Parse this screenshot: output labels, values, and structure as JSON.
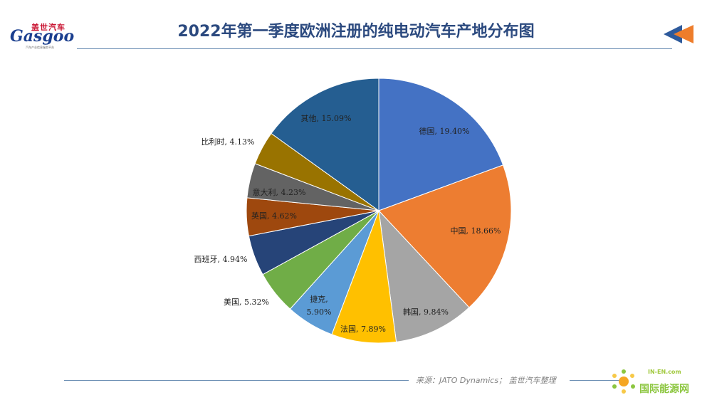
{
  "logo": {
    "top_text": "盖世汽车",
    "main_text": "Gasgoo",
    "sub_text": "汽车产业信息服务平台",
    "brand_color": "#1b3f8f",
    "accent_color": "#c8102e"
  },
  "title": "2022年第一季度欧洲注册的纯电动汽车产地分布图",
  "source": "来源：JATO Dynamics；  盖世汽车整理",
  "watermark": {
    "en": "IN-EN.com",
    "cn": "国际能源网"
  },
  "decor_icon": "double-arrow-left-icon",
  "chart_data": {
    "type": "pie",
    "title": "2022年第一季度欧洲注册的纯电动汽车产地分布图",
    "start_angle_deg": 0,
    "direction": "clockwise",
    "slices": [
      {
        "label": "德国",
        "value": 19.4,
        "display": "19.40%",
        "color": "#4472c4"
      },
      {
        "label": "中国",
        "value": 18.66,
        "display": "18.66%",
        "color": "#ed7d31"
      },
      {
        "label": "韩国",
        "value": 9.84,
        "display": "9.84%",
        "color": "#a5a5a5"
      },
      {
        "label": "法国",
        "value": 7.89,
        "display": "7.89%",
        "color": "#ffc000"
      },
      {
        "label": "捷克",
        "value": 5.9,
        "display": "5.90%",
        "color": "#5b9bd5"
      },
      {
        "label": "美国",
        "value": 5.32,
        "display": "5.32%",
        "color": "#70ad47"
      },
      {
        "label": "西班牙",
        "value": 4.94,
        "display": "4.94%",
        "color": "#264478"
      },
      {
        "label": "英国",
        "value": 4.62,
        "display": "4.62%",
        "color": "#9e480e"
      },
      {
        "label": "意大利",
        "value": 4.23,
        "display": "4.23%",
        "color": "#636363"
      },
      {
        "label": "比利时",
        "value": 4.13,
        "display": "4.13%",
        "color": "#997300"
      },
      {
        "label": "其他",
        "value": 15.09,
        "display": "15.09%",
        "color": "#255e91"
      }
    ]
  }
}
